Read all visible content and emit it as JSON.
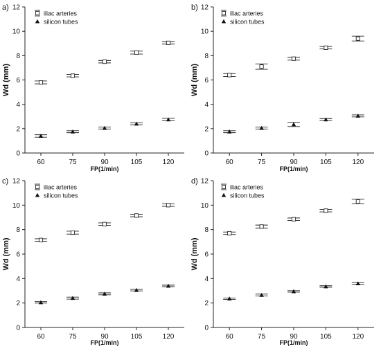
{
  "chart_data": [
    {
      "type": "scatter",
      "panel_label": "a)",
      "categories": [
        "60",
        "75",
        "90",
        "105",
        "120"
      ],
      "xlabel": "FP(1/min)",
      "ylabel": "Wd (mm)",
      "ylim": [
        0,
        12
      ],
      "yticks": [
        "0",
        "2",
        "4",
        "6",
        "8",
        "10",
        "12"
      ],
      "legend": "top-left",
      "series": [
        {
          "name": "iliac arteries",
          "marker": "square-open",
          "values": [
            5.8,
            6.35,
            7.5,
            8.25,
            9.05
          ],
          "err": [
            0.12,
            0.1,
            0.1,
            0.12,
            0.1
          ]
        },
        {
          "name": "silicon tubes",
          "marker": "triangle-filled",
          "values": [
            1.4,
            1.75,
            2.05,
            2.4,
            2.75
          ],
          "err": [
            0.1,
            0.08,
            0.08,
            0.08,
            0.1
          ]
        }
      ]
    },
    {
      "type": "scatter",
      "panel_label": "b)",
      "categories": [
        "60",
        "75",
        "90",
        "105",
        "120"
      ],
      "xlabel": "FP(1/min)",
      "ylabel": "Wd (mm)",
      "ylim": [
        0,
        12
      ],
      "yticks": [
        "0",
        "2",
        "4",
        "6",
        "8",
        "10",
        "12"
      ],
      "legend": "top-left",
      "series": [
        {
          "name": "iliac arteries",
          "marker": "square-open",
          "values": [
            6.4,
            7.1,
            7.75,
            8.65,
            9.4
          ],
          "err": [
            0.12,
            0.22,
            0.12,
            0.1,
            0.2
          ]
        },
        {
          "name": "silicon tubes",
          "marker": "triangle-filled",
          "values": [
            1.75,
            2.05,
            2.35,
            2.75,
            3.05
          ],
          "err": [
            0.08,
            0.08,
            0.18,
            0.08,
            0.08
          ]
        }
      ]
    },
    {
      "type": "scatter",
      "panel_label": "c)",
      "categories": [
        "60",
        "75",
        "90",
        "105",
        "120"
      ],
      "xlabel": "FP(1/min)",
      "ylabel": "Wd (mm)",
      "ylim": [
        0,
        12
      ],
      "yticks": [
        "0",
        "2",
        "4",
        "6",
        "8",
        "10",
        "12"
      ],
      "legend": "top-left",
      "series": [
        {
          "name": "iliac arteries",
          "marker": "square-open",
          "values": [
            7.15,
            7.75,
            8.45,
            9.15,
            10.0
          ],
          "err": [
            0.1,
            0.12,
            0.1,
            0.1,
            0.1
          ]
        },
        {
          "name": "silicon tubes",
          "marker": "triangle-filled",
          "values": [
            2.05,
            2.4,
            2.75,
            3.05,
            3.4
          ],
          "err": [
            0.06,
            0.08,
            0.08,
            0.06,
            0.06
          ]
        }
      ]
    },
    {
      "type": "scatter",
      "panel_label": "d)",
      "categories": [
        "60",
        "75",
        "90",
        "105",
        "120"
      ],
      "xlabel": "FP(1/min)",
      "ylabel": "Wd (mm)",
      "ylim": [
        0,
        12
      ],
      "yticks": [
        "0",
        "2",
        "4",
        "6",
        "8",
        "10",
        "12"
      ],
      "legend": "top-left",
      "series": [
        {
          "name": "iliac arteries",
          "marker": "square-open",
          "values": [
            7.7,
            8.25,
            8.85,
            9.55,
            10.3
          ],
          "err": [
            0.1,
            0.12,
            0.1,
            0.1,
            0.18
          ]
        },
        {
          "name": "silicon tubes",
          "marker": "triangle-filled",
          "values": [
            2.35,
            2.65,
            2.95,
            3.35,
            3.6
          ],
          "err": [
            0.06,
            0.08,
            0.06,
            0.06,
            0.06
          ]
        }
      ]
    }
  ]
}
